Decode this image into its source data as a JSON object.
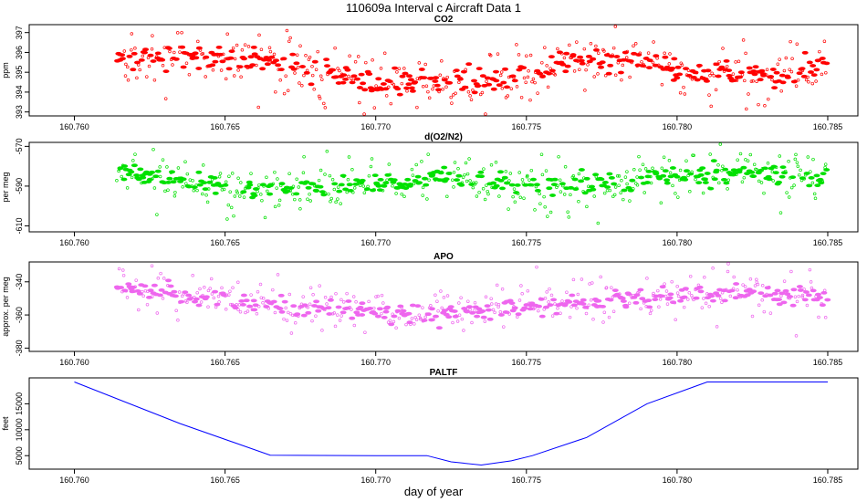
{
  "title": "110609a   Interval c Aircraft Data 1",
  "xlabel": "day of year",
  "chart_data": [
    {
      "type": "scatter",
      "title": "CO2",
      "ylabel": "ppm",
      "xlim": [
        160.7585,
        160.786
      ],
      "ylim": [
        392.8,
        397.4
      ],
      "xticks": [
        "160.760",
        "160.765",
        "160.770",
        "160.775",
        "160.780",
        "160.785"
      ],
      "xtick_values": [
        160.76,
        160.765,
        160.77,
        160.775,
        160.78,
        160.785
      ],
      "yticks": [
        "393",
        "394",
        "395",
        "396",
        "397"
      ],
      "ytick_values": [
        393,
        394,
        395,
        396,
        397
      ],
      "x_range": [
        160.7614,
        160.785
      ],
      "trend": [
        [
          160.7614,
          395.7
        ],
        [
          160.7635,
          395.9
        ],
        [
          160.7655,
          395.7
        ],
        [
          160.7675,
          395.3
        ],
        [
          160.769,
          394.7
        ],
        [
          160.7705,
          394.3
        ],
        [
          160.772,
          394.6
        ],
        [
          160.7735,
          394.6
        ],
        [
          160.7755,
          395.0
        ],
        [
          160.777,
          395.6
        ],
        [
          160.779,
          395.6
        ],
        [
          160.7805,
          394.9
        ],
        [
          160.782,
          395.1
        ],
        [
          160.7835,
          394.8
        ],
        [
          160.785,
          395.5
        ]
      ],
      "noise": 0.85,
      "color": "#ff0000"
    },
    {
      "type": "scatter",
      "title": "d(O2/N2)",
      "ylabel": "per meg",
      "xlim": [
        160.7585,
        160.786
      ],
      "ylim": [
        -613,
        -568
      ],
      "xticks": [
        "160.760",
        "160.765",
        "160.770",
        "160.775",
        "160.780",
        "160.785"
      ],
      "xtick_values": [
        160.76,
        160.765,
        160.77,
        160.775,
        160.78,
        160.785
      ],
      "yticks": [
        "-610",
        "-590",
        "-570"
      ],
      "ytick_values": [
        -610,
        -590,
        -570
      ],
      "x_range": [
        160.7614,
        160.785
      ],
      "trend": [
        [
          160.7614,
          -582
        ],
        [
          160.763,
          -586
        ],
        [
          160.765,
          -590
        ],
        [
          160.7665,
          -593
        ],
        [
          160.768,
          -590
        ],
        [
          160.7695,
          -588
        ],
        [
          160.771,
          -589
        ],
        [
          160.7725,
          -584
        ],
        [
          160.7745,
          -590
        ],
        [
          160.7765,
          -590
        ],
        [
          160.7785,
          -587
        ],
        [
          160.78,
          -585
        ],
        [
          160.7815,
          -583
        ],
        [
          160.7835,
          -585
        ],
        [
          160.785,
          -587
        ]
      ],
      "noise": 7,
      "color": "#00e000"
    },
    {
      "type": "scatter",
      "title": "APO",
      "ylabel": "approx. per meg",
      "xlim": [
        160.7585,
        160.786
      ],
      "ylim": [
        -382,
        -328
      ],
      "xticks": [
        "160.760",
        "160.765",
        "160.770",
        "160.775",
        "160.780",
        "160.785"
      ],
      "xtick_values": [
        160.76,
        160.765,
        160.77,
        160.775,
        160.78,
        160.785
      ],
      "yticks": [
        "-380",
        "-360",
        "-340"
      ],
      "ytick_values": [
        -380,
        -360,
        -340
      ],
      "x_range": [
        160.7614,
        160.785
      ],
      "trend": [
        [
          160.7614,
          -342
        ],
        [
          160.763,
          -346
        ],
        [
          160.765,
          -352
        ],
        [
          160.767,
          -355
        ],
        [
          160.769,
          -357
        ],
        [
          160.771,
          -360
        ],
        [
          160.7725,
          -358
        ],
        [
          160.7745,
          -356
        ],
        [
          160.7765,
          -352
        ],
        [
          160.779,
          -350
        ],
        [
          160.781,
          -348
        ],
        [
          160.7825,
          -346
        ],
        [
          160.785,
          -349
        ]
      ],
      "noise": 8,
      "color": "#ee66ee"
    },
    {
      "type": "line",
      "title": "PALTF",
      "ylabel": "feet",
      "xlim": [
        160.7585,
        160.786
      ],
      "ylim": [
        2400,
        20000
      ],
      "xticks": [
        "160.760",
        "160.765",
        "160.770",
        "160.775",
        "160.780",
        "160.785"
      ],
      "xtick_values": [
        160.76,
        160.765,
        160.77,
        160.775,
        160.78,
        160.785
      ],
      "yticks": [
        "5000",
        "10000",
        "15000"
      ],
      "ytick_values": [
        5000,
        10000,
        15000
      ],
      "points": [
        [
          160.76,
          19200
        ],
        [
          160.7635,
          11200
        ],
        [
          160.7665,
          5100
        ],
        [
          160.77,
          5000
        ],
        [
          160.7717,
          5000
        ],
        [
          160.7725,
          3800
        ],
        [
          160.7735,
          3200
        ],
        [
          160.7745,
          4000
        ],
        [
          160.7752,
          5000
        ],
        [
          160.777,
          8500
        ],
        [
          160.779,
          15000
        ],
        [
          160.781,
          19200
        ],
        [
          160.785,
          19200
        ]
      ],
      "color": "#0000ff"
    }
  ]
}
